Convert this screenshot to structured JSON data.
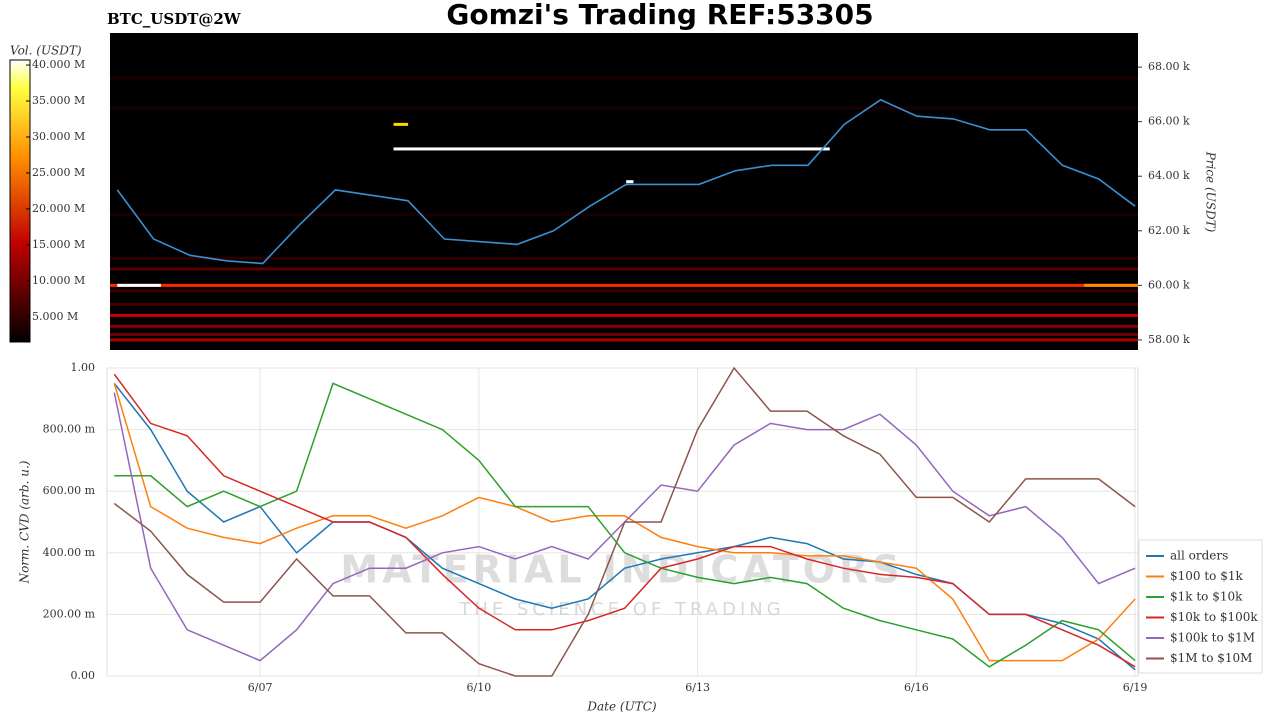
{
  "header": {
    "title": "Gomzi's Trading REF:53305",
    "symbol": "BTC_USDT@2W"
  },
  "watermark": {
    "name": "MATERIAL INDICATORS",
    "tagline": "THE SCIENCE OF TRADING"
  },
  "chart_data": [
    {
      "type": "heatmap",
      "ylabel": "Price (USDT)",
      "color": "#3a8fd0",
      "xlim": [
        4.9,
        19.04
      ],
      "ylim": [
        57.63,
        69.25
      ],
      "yticks": [
        {
          "value": 58,
          "label": "58.00 k"
        },
        {
          "value": 60,
          "label": "60.00 k"
        },
        {
          "value": 62,
          "label": "62.00 k"
        },
        {
          "value": 64,
          "label": "64.00 k"
        },
        {
          "value": 66,
          "label": "66.00 k"
        },
        {
          "value": 68,
          "label": "68.00 k"
        }
      ],
      "colorbar": {
        "label": "Vol. (USDT)",
        "lim": [
          1.5,
          40.7
        ],
        "ticks": [
          {
            "value": 5,
            "label": "5.000 M"
          },
          {
            "value": 10,
            "label": "10.000 M"
          },
          {
            "value": 15,
            "label": "15.000 M"
          },
          {
            "value": 20,
            "label": "20.000 M"
          },
          {
            "value": 25,
            "label": "25.000 M"
          },
          {
            "value": 30,
            "label": "30.000 M"
          },
          {
            "value": 35,
            "label": "35.000 M"
          },
          {
            "value": 40,
            "label": "40.000 M"
          }
        ]
      },
      "liquidity": [
        {
          "price": 58.0,
          "x0": 4.9,
          "x1": 19.04,
          "volume": 12
        },
        {
          "price": 58.2,
          "x0": 4.9,
          "x1": 19.04,
          "volume": 8
        },
        {
          "price": 58.5,
          "x0": 4.9,
          "x1": 19.04,
          "volume": 10
        },
        {
          "price": 58.9,
          "x0": 4.9,
          "x1": 19.04,
          "volume": 14
        },
        {
          "price": 59.3,
          "x0": 4.9,
          "x1": 19.04,
          "volume": 6
        },
        {
          "price": 59.8,
          "x0": 4.9,
          "x1": 19.04,
          "volume": 5
        },
        {
          "price": 60.0,
          "x0": 4.9,
          "x1": 19.04,
          "volume": 18
        },
        {
          "price": 60.6,
          "x0": 4.9,
          "x1": 19.04,
          "volume": 7
        },
        {
          "price": 61.0,
          "x0": 4.9,
          "x1": 19.04,
          "volume": 4
        },
        {
          "price": 62.6,
          "x0": 4.9,
          "x1": 19.04,
          "volume": 3
        },
        {
          "price": 66.5,
          "x0": 4.9,
          "x1": 19.04,
          "volume": 3
        },
        {
          "price": 67.6,
          "x0": 4.9,
          "x1": 19.04,
          "volume": 3
        },
        {
          "price": 60.0,
          "x0": 18.3,
          "x1": 19.04,
          "volume": 25
        },
        {
          "price": 65.9,
          "x0": 8.8,
          "x1": 9.0,
          "volume": 30
        },
        {
          "price": 60.0,
          "x0": 5.0,
          "x1": 5.6,
          "volume": 42
        },
        {
          "price": 65.0,
          "x0": 8.8,
          "x1": 14.8,
          "volume": 42
        },
        {
          "price": 63.8,
          "x0": 12.0,
          "x1": 12.1,
          "volume": 42
        }
      ],
      "x": [
        5,
        5.5,
        6,
        6.5,
        7,
        7.5,
        8,
        8.5,
        9,
        9.5,
        10,
        10.5,
        11,
        11.5,
        12,
        12.5,
        13,
        13.5,
        14,
        14.5,
        15,
        15.5,
        16,
        16.5,
        17,
        17.5,
        18,
        18.5,
        19
      ],
      "values": [
        63.5,
        61.7,
        61.1,
        60.9,
        60.8,
        62.2,
        63.5,
        63.3,
        63.1,
        61.7,
        61.6,
        61.5,
        62.0,
        62.9,
        63.7,
        63.7,
        63.7,
        64.2,
        64.4,
        64.4,
        65.9,
        66.8,
        66.2,
        66.1,
        65.7,
        65.7,
        64.4,
        63.9,
        62.9
      ]
    },
    {
      "type": "line",
      "xlabel": "Date (UTC)",
      "ylabel": "Norm. CVD (arb. u.)",
      "grid": true,
      "legend": "lower right",
      "xlim": [
        4.9,
        19.04
      ],
      "ylim": [
        0,
        1
      ],
      "xticks": [
        {
          "value": 7,
          "label": "6/07"
        },
        {
          "value": 10,
          "label": "6/10"
        },
        {
          "value": 13,
          "label": "6/13"
        },
        {
          "value": 16,
          "label": "6/16"
        },
        {
          "value": 19,
          "label": "6/19"
        }
      ],
      "yticks": [
        {
          "value": 0,
          "label": "0.00"
        },
        {
          "value": 0.2,
          "label": "200.00 m"
        },
        {
          "value": 0.4,
          "label": "400.00 m"
        },
        {
          "value": 0.6,
          "label": "600.00 m"
        },
        {
          "value": 0.8,
          "label": "800.00 m"
        },
        {
          "value": 1,
          "label": "1.00"
        }
      ],
      "x": [
        5,
        5.5,
        6,
        6.5,
        7,
        7.5,
        8,
        8.5,
        9,
        9.5,
        10,
        10.5,
        11,
        11.5,
        12,
        12.5,
        13,
        13.5,
        14,
        14.5,
        15,
        15.5,
        16,
        16.5,
        17,
        17.5,
        18,
        18.5,
        19
      ],
      "series": [
        {
          "name": "all orders",
          "color": "#1f77b4",
          "values": [
            0.95,
            0.8,
            0.6,
            0.5,
            0.55,
            0.4,
            0.5,
            0.5,
            0.45,
            0.35,
            0.3,
            0.25,
            0.22,
            0.25,
            0.35,
            0.38,
            0.4,
            0.42,
            0.45,
            0.43,
            0.38,
            0.37,
            0.33,
            0.3,
            0.2,
            0.2,
            0.17,
            0.12,
            0.02
          ]
        },
        {
          "name": "$100 to $1k",
          "color": "#ff7f0e",
          "values": [
            0.95,
            0.55,
            0.48,
            0.45,
            0.43,
            0.48,
            0.52,
            0.52,
            0.48,
            0.52,
            0.58,
            0.55,
            0.5,
            0.52,
            0.52,
            0.45,
            0.42,
            0.4,
            0.4,
            0.39,
            0.39,
            0.37,
            0.35,
            0.25,
            0.05,
            0.05,
            0.05,
            0.12,
            0.25
          ]
        },
        {
          "name": "$1k to $10k",
          "color": "#2ca02c",
          "values": [
            0.65,
            0.65,
            0.55,
            0.6,
            0.55,
            0.6,
            0.95,
            0.9,
            0.85,
            0.8,
            0.7,
            0.55,
            0.55,
            0.55,
            0.4,
            0.35,
            0.32,
            0.3,
            0.32,
            0.3,
            0.22,
            0.18,
            0.15,
            0.12,
            0.03,
            0.1,
            0.18,
            0.15,
            0.05
          ]
        },
        {
          "name": "$10k to $100k",
          "color": "#d62728",
          "values": [
            0.98,
            0.82,
            0.78,
            0.65,
            0.6,
            0.55,
            0.5,
            0.5,
            0.45,
            0.33,
            0.22,
            0.15,
            0.15,
            0.18,
            0.22,
            0.35,
            0.38,
            0.42,
            0.42,
            0.38,
            0.35,
            0.33,
            0.32,
            0.3,
            0.2,
            0.2,
            0.15,
            0.1,
            0.03
          ]
        },
        {
          "name": "$100k to $1M",
          "color": "#9467bd",
          "values": [
            0.92,
            0.35,
            0.15,
            0.1,
            0.05,
            0.15,
            0.3,
            0.35,
            0.35,
            0.4,
            0.42,
            0.38,
            0.42,
            0.38,
            0.5,
            0.62,
            0.6,
            0.75,
            0.82,
            0.8,
            0.8,
            0.85,
            0.75,
            0.6,
            0.52,
            0.55,
            0.45,
            0.3,
            0.35
          ]
        },
        {
          "name": "$1M to $10M",
          "color": "#8c564b",
          "values": [
            0.56,
            0.47,
            0.33,
            0.24,
            0.24,
            0.38,
            0.26,
            0.26,
            0.14,
            0.14,
            0.04,
            0,
            0,
            0.2,
            0.5,
            0.5,
            0.8,
            1.0,
            0.86,
            0.86,
            0.78,
            0.72,
            0.58,
            0.58,
            0.5,
            0.64,
            0.64,
            0.64,
            0.55
          ]
        }
      ]
    }
  ]
}
